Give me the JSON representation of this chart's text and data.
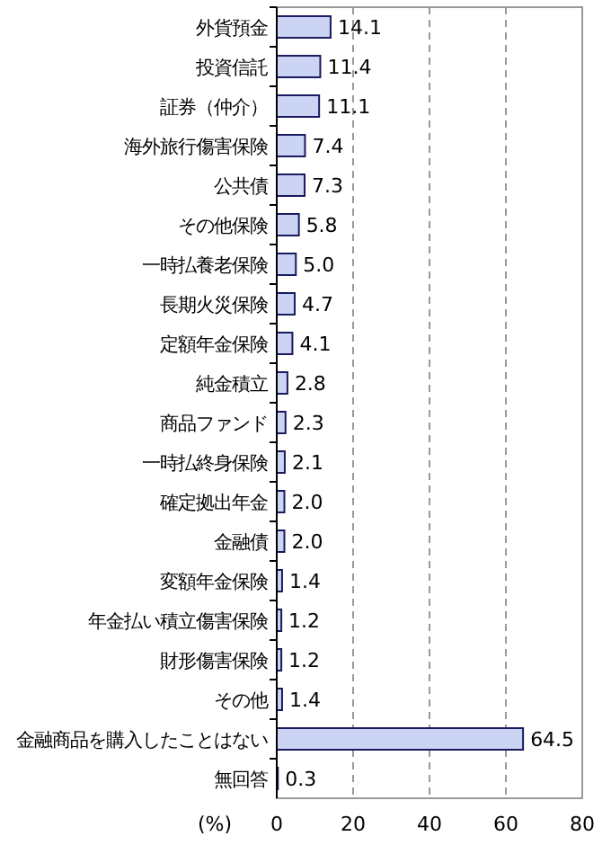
{
  "chart_data": {
    "type": "bar",
    "orientation": "horizontal",
    "xlabel": "(%)",
    "categories": [
      "外貨預金",
      "投資信託",
      "証券（仲介）",
      "海外旅行傷害保険",
      "公共債",
      "その他保険",
      "一時払養老保険",
      "長期火災保険",
      "定額年金保険",
      "純金積立",
      "商品ファンド",
      "一時払終身保険",
      "確定拠出年金",
      "金融債",
      "変額年金保険",
      "年金払い積立傷害保険",
      "財形傷害保険",
      "その他",
      "金融商品を購入したことはない",
      "無回答"
    ],
    "values": [
      14.1,
      11.4,
      11.1,
      7.4,
      7.3,
      5.8,
      5.0,
      4.7,
      4.1,
      2.8,
      2.3,
      2.1,
      2.0,
      2.0,
      1.4,
      1.2,
      1.2,
      1.4,
      64.5,
      0.3
    ],
    "value_labels": [
      "14.1",
      "11.4",
      "11.1",
      "7.4",
      "7.3",
      "5.8",
      "5.0",
      "4.7",
      "4.1",
      "2.8",
      "2.3",
      "2.1",
      "2.0",
      "2.0",
      "1.4",
      "1.2",
      "1.2",
      "1.4",
      "64.5",
      "0.3"
    ],
    "color": "#ccd4f4",
    "xlim": [
      0,
      80
    ],
    "xticks": [
      0,
      20,
      40,
      60,
      80
    ],
    "grid": "x"
  }
}
